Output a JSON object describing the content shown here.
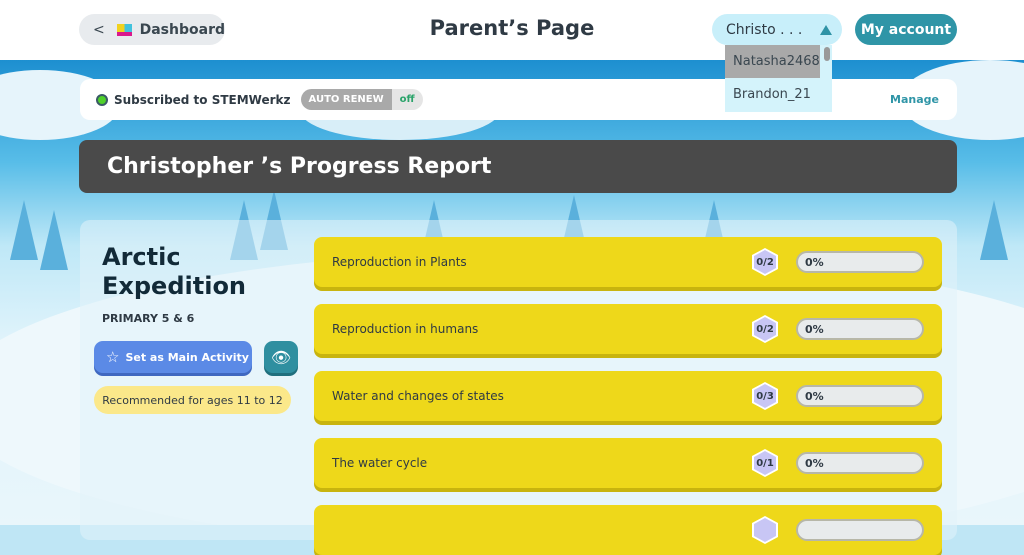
{
  "header": {
    "back_label": "Dashboard",
    "title": "Parent’s Page",
    "child_select": "Christo . . .",
    "account_label": "My account"
  },
  "child_dropdown": {
    "options": [
      "Natasha2468",
      "Brandon_21"
    ],
    "highlighted": "Natasha2468"
  },
  "subscription": {
    "status": "Subscribed to STEMWerkz",
    "auto_renew_label": "AUTO RENEW",
    "auto_renew_value": "off",
    "manage_label": "Manage",
    "status_color": "#4fd12a"
  },
  "report": {
    "title": "Christopher ’s Progress Report"
  },
  "activity": {
    "name_line1": "Arctic",
    "name_line2": "Expedition",
    "level": "PRIMARY 5 & 6",
    "set_main_label": "Set as Main Activity",
    "recommended": "Recommended for ages 11 to 12"
  },
  "topics": [
    {
      "name": "Reproduction in Plants",
      "count": "0/2",
      "progress": "0%"
    },
    {
      "name": "Reproduction in humans",
      "count": "0/2",
      "progress": "0%"
    },
    {
      "name": "Water and changes of states",
      "count": "0/3",
      "progress": "0%"
    },
    {
      "name": "The water cycle",
      "count": "0/1",
      "progress": "0%"
    },
    {
      "name": "",
      "count": "",
      "progress": ""
    }
  ]
}
